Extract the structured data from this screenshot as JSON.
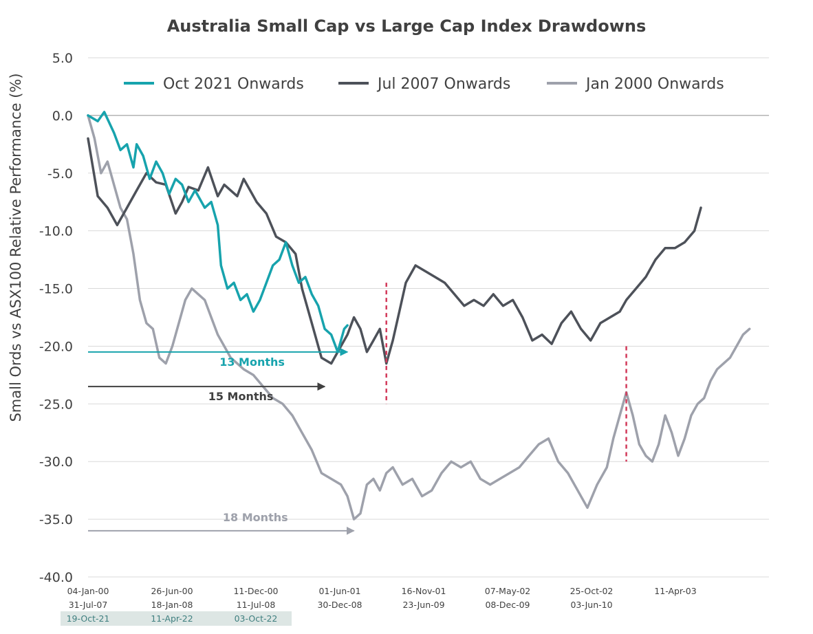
{
  "chart_data": {
    "type": "line",
    "title": "Australia Small Cap vs Large Cap Index Drawdowns",
    "ylabel": "Small Ords vs ASX100 Relative Performance (%)",
    "xlabel": "",
    "ylim": [
      -40,
      5
    ],
    "yticks": [
      "5.0",
      "0.0",
      "-5.0",
      "-10.0",
      "-15.0",
      "-20.0",
      "-25.0",
      "-30.0",
      "-35.0",
      "-40.0"
    ],
    "grid": true,
    "legend_position": "top",
    "x_label_rows": [
      [
        "04-Jan-00",
        "26-Jun-00",
        "11-Dec-00",
        "01-Jun-01",
        "16-Nov-01",
        "07-May-02",
        "25-Oct-02",
        "11-Apr-03"
      ],
      [
        "31-Jul-07",
        "18-Jan-08",
        "11-Jul-08",
        "30-Dec-08",
        "23-Jun-09",
        "08-Dec-09",
        "03-Jun-10"
      ],
      [
        "19-Oct-21",
        "11-Apr-22",
        "03-Oct-22"
      ]
    ],
    "x_label_row_colors": [
      "#404040",
      "#404040",
      "#3f7f7f"
    ],
    "series": [
      {
        "name": "Oct 2021 Onwards",
        "color": "#17a3ad",
        "points": [
          [
            0,
            0
          ],
          [
            3,
            -0.5
          ],
          [
            5,
            0.3
          ],
          [
            8,
            -1.5
          ],
          [
            10,
            -3
          ],
          [
            12,
            -2.5
          ],
          [
            14,
            -4.5
          ],
          [
            15,
            -2.5
          ],
          [
            17,
            -3.5
          ],
          [
            19,
            -5.5
          ],
          [
            21,
            -4
          ],
          [
            23,
            -5
          ],
          [
            25,
            -6.8
          ],
          [
            27,
            -5.5
          ],
          [
            29,
            -6
          ],
          [
            31,
            -7.5
          ],
          [
            33,
            -6.5
          ],
          [
            36,
            -8
          ],
          [
            38,
            -7.5
          ],
          [
            40,
            -9.5
          ],
          [
            41,
            -13
          ],
          [
            43,
            -15
          ],
          [
            45,
            -14.5
          ],
          [
            47,
            -16
          ],
          [
            49,
            -15.5
          ],
          [
            51,
            -17
          ],
          [
            53,
            -16
          ],
          [
            55,
            -14.5
          ],
          [
            57,
            -13
          ],
          [
            59,
            -12.5
          ],
          [
            61,
            -11
          ],
          [
            63,
            -13
          ],
          [
            65,
            -14.5
          ],
          [
            67,
            -14
          ],
          [
            69,
            -15.5
          ],
          [
            71,
            -16.5
          ],
          [
            73,
            -18.5
          ],
          [
            75,
            -19
          ],
          [
            77,
            -20.5
          ],
          [
            79,
            -18.5
          ],
          [
            80,
            -18.2
          ]
        ]
      },
      {
        "name": "Jul 2007 Onwards",
        "color": "#4d5159",
        "points": [
          [
            0,
            -2
          ],
          [
            3,
            -7
          ],
          [
            6,
            -8
          ],
          [
            9,
            -9.5
          ],
          [
            12,
            -8
          ],
          [
            15,
            -6.5
          ],
          [
            18,
            -5
          ],
          [
            21,
            -5.8
          ],
          [
            24,
            -6
          ],
          [
            27,
            -8.5
          ],
          [
            29,
            -7.5
          ],
          [
            31,
            -6.2
          ],
          [
            34,
            -6.5
          ],
          [
            37,
            -4.5
          ],
          [
            40,
            -7
          ],
          [
            42,
            -6
          ],
          [
            44,
            -6.5
          ],
          [
            46,
            -7
          ],
          [
            48,
            -5.5
          ],
          [
            50,
            -6.5
          ],
          [
            52,
            -7.5
          ],
          [
            55,
            -8.5
          ],
          [
            58,
            -10.5
          ],
          [
            61,
            -11
          ],
          [
            64,
            -12
          ],
          [
            66,
            -15
          ],
          [
            69,
            -18
          ],
          [
            72,
            -21
          ],
          [
            75,
            -21.5
          ],
          [
            78,
            -20
          ],
          [
            80,
            -19
          ],
          [
            82,
            -17.5
          ],
          [
            84,
            -18.5
          ],
          [
            86,
            -20.5
          ],
          [
            88,
            -19.5
          ],
          [
            90,
            -18.5
          ],
          [
            92,
            -21.5
          ],
          [
            94,
            -19.5
          ],
          [
            96,
            -17
          ],
          [
            98,
            -14.5
          ],
          [
            101,
            -13
          ],
          [
            104,
            -13.5
          ],
          [
            107,
            -14
          ],
          [
            110,
            -14.5
          ],
          [
            113,
            -15.5
          ],
          [
            116,
            -16.5
          ],
          [
            119,
            -16
          ],
          [
            122,
            -16.5
          ],
          [
            125,
            -15.5
          ],
          [
            128,
            -16.5
          ],
          [
            131,
            -16
          ],
          [
            134,
            -17.5
          ],
          [
            137,
            -19.5
          ],
          [
            140,
            -19
          ],
          [
            143,
            -19.8
          ],
          [
            146,
            -18
          ],
          [
            149,
            -17
          ],
          [
            152,
            -18.5
          ],
          [
            155,
            -19.5
          ],
          [
            158,
            -18
          ],
          [
            161,
            -17.5
          ],
          [
            164,
            -17
          ],
          [
            166,
            -16
          ],
          [
            169,
            -15
          ],
          [
            172,
            -14
          ],
          [
            175,
            -12.5
          ],
          [
            178,
            -11.5
          ],
          [
            181,
            -11.5
          ],
          [
            184,
            -11
          ],
          [
            187,
            -10
          ],
          [
            189,
            -8
          ]
        ]
      },
      {
        "name": "Jan 2000 Onwards",
        "color": "#9ea1ab",
        "points": [
          [
            0,
            0
          ],
          [
            2,
            -2
          ],
          [
            4,
            -5
          ],
          [
            6,
            -4
          ],
          [
            8,
            -6
          ],
          [
            10,
            -8
          ],
          [
            12,
            -9
          ],
          [
            14,
            -12
          ],
          [
            16,
            -16
          ],
          [
            18,
            -18
          ],
          [
            20,
            -18.5
          ],
          [
            22,
            -21
          ],
          [
            24,
            -21.5
          ],
          [
            26,
            -20
          ],
          [
            28,
            -18
          ],
          [
            30,
            -16
          ],
          [
            32,
            -15
          ],
          [
            34,
            -15.5
          ],
          [
            36,
            -16
          ],
          [
            38,
            -17.5
          ],
          [
            40,
            -19
          ],
          [
            42,
            -20
          ],
          [
            44,
            -21
          ],
          [
            46,
            -21.5
          ],
          [
            48,
            -22
          ],
          [
            51,
            -22.5
          ],
          [
            54,
            -23.5
          ],
          [
            57,
            -24.5
          ],
          [
            60,
            -25
          ],
          [
            63,
            -26
          ],
          [
            66,
            -27.5
          ],
          [
            69,
            -29
          ],
          [
            72,
            -31
          ],
          [
            75,
            -31.5
          ],
          [
            78,
            -32
          ],
          [
            80,
            -33
          ],
          [
            82,
            -35
          ],
          [
            84,
            -34.5
          ],
          [
            86,
            -32
          ],
          [
            88,
            -31.5
          ],
          [
            90,
            -32.5
          ],
          [
            92,
            -31
          ],
          [
            94,
            -30.5
          ],
          [
            97,
            -32
          ],
          [
            100,
            -31.5
          ],
          [
            103,
            -33
          ],
          [
            106,
            -32.5
          ],
          [
            109,
            -31
          ],
          [
            112,
            -30
          ],
          [
            115,
            -30.5
          ],
          [
            118,
            -30
          ],
          [
            121,
            -31.5
          ],
          [
            124,
            -32
          ],
          [
            127,
            -31.5
          ],
          [
            130,
            -31
          ],
          [
            133,
            -30.5
          ],
          [
            136,
            -29.5
          ],
          [
            139,
            -28.5
          ],
          [
            142,
            -28
          ],
          [
            145,
            -30
          ],
          [
            148,
            -31
          ],
          [
            151,
            -32.5
          ],
          [
            154,
            -34
          ],
          [
            157,
            -32
          ],
          [
            160,
            -30.5
          ],
          [
            162,
            -28
          ],
          [
            164,
            -26
          ],
          [
            166,
            -24
          ],
          [
            168,
            -26
          ],
          [
            170,
            -28.5
          ],
          [
            172,
            -29.5
          ],
          [
            174,
            -30
          ],
          [
            176,
            -28.5
          ],
          [
            178,
            -26
          ],
          [
            180,
            -27.5
          ],
          [
            182,
            -29.5
          ],
          [
            184,
            -28
          ],
          [
            186,
            -26
          ],
          [
            188,
            -25
          ],
          [
            190,
            -24.5
          ],
          [
            192,
            -23
          ],
          [
            194,
            -22
          ],
          [
            196,
            -21.5
          ],
          [
            198,
            -21
          ],
          [
            200,
            -20
          ],
          [
            202,
            -19
          ],
          [
            204,
            -18.5
          ]
        ]
      }
    ],
    "annotations": [
      {
        "text": "13 Months",
        "color": "#17a3ad",
        "arrow_y": -20.5,
        "arrow_from": 0,
        "arrow_to": 80
      },
      {
        "text": "15 Months",
        "color": "#404040",
        "arrow_y": -23.5,
        "arrow_from": 0,
        "arrow_to": 73
      },
      {
        "text": "18 Months",
        "color": "#9ea1ab",
        "arrow_y": -36,
        "arrow_from": 0,
        "arrow_to": 82
      }
    ],
    "markers": [
      {
        "x": 92,
        "ymin": -25,
        "ymax": -14.5,
        "color": "#d23a5a"
      },
      {
        "x": 166,
        "ymin": -30,
        "ymax": -20,
        "color": "#d23a5a"
      }
    ]
  }
}
